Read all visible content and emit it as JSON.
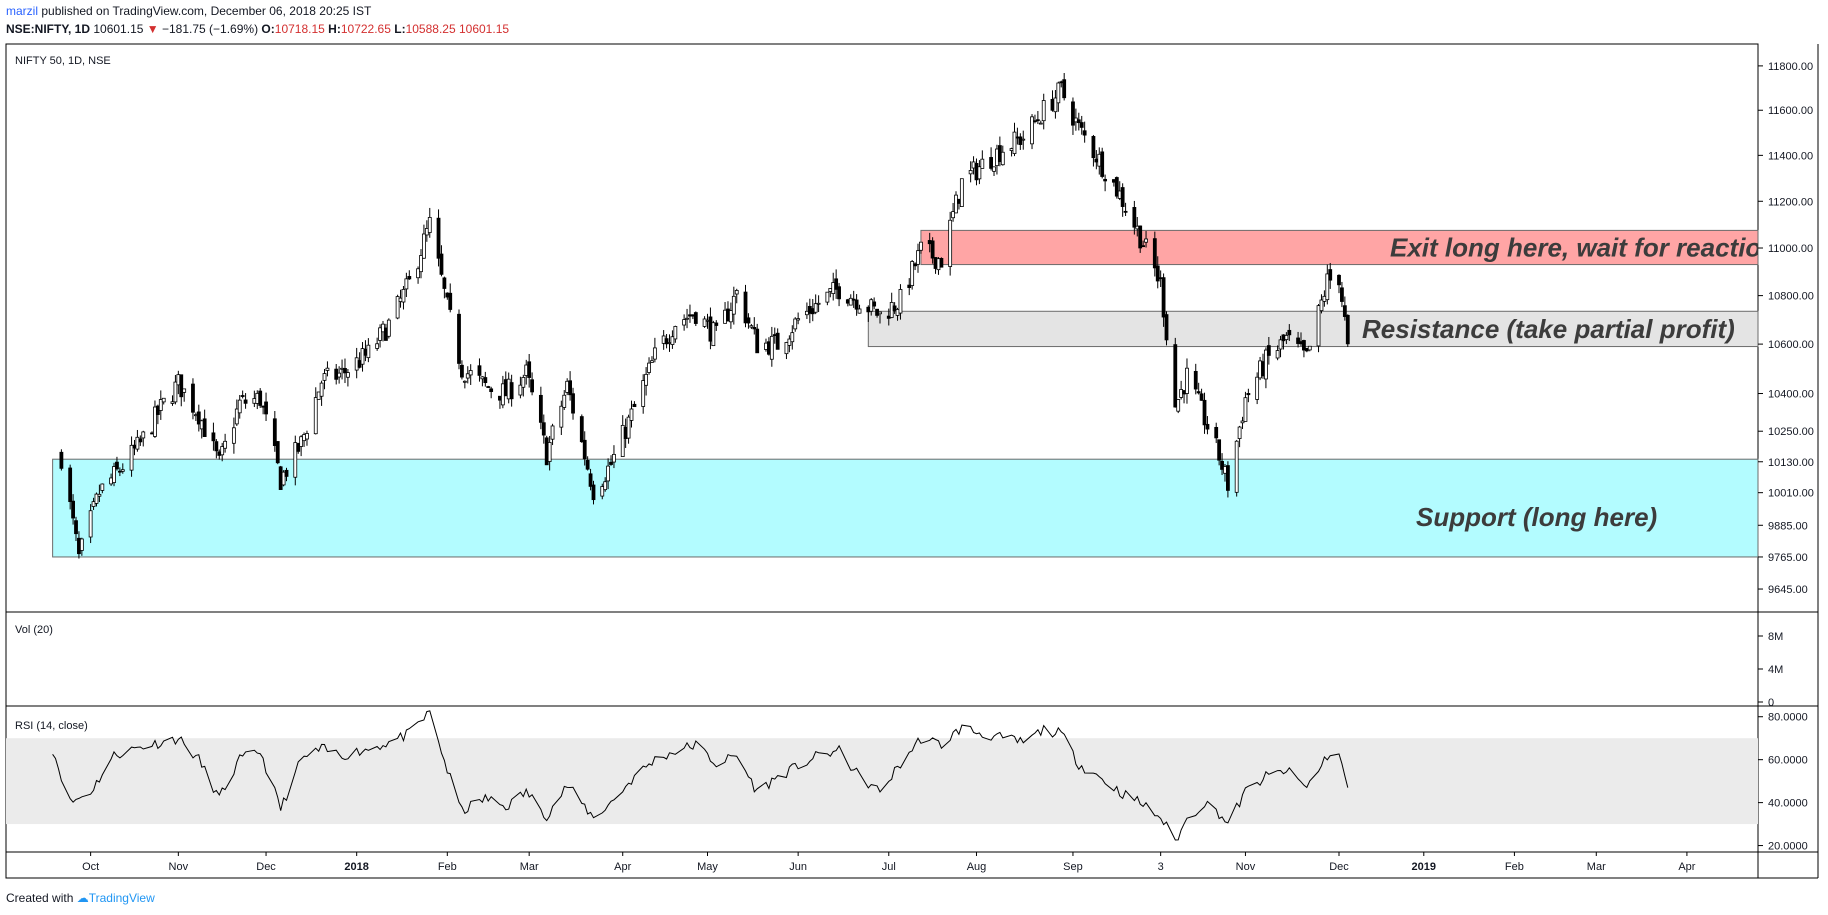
{
  "header": {
    "username": "marzil",
    "published_text": "published on TradingView.com, December 06, 2018 20:25 IST"
  },
  "ticker": {
    "symbol": "NSE:NIFTY, 1D",
    "last": "10601.15",
    "change": "−181.75 (−1.69%)",
    "open_label": "O:",
    "open": "10718.15",
    "high_label": "H:",
    "high": "10722.65",
    "low_label": "L:",
    "low": "10588.25",
    "close": "10601.15"
  },
  "footer": {
    "created_with": "Created with",
    "brand": "TradingView"
  },
  "colors": {
    "support_zone": "#b3fcff",
    "resistance_zone": "#e4e4e4",
    "exit_zone": "#ffa5a5",
    "candle": "#000000",
    "rsi_band": "#ebebeb",
    "annotation_text": "#3c3c3c"
  },
  "chart_data": [
    {
      "type": "candlestick",
      "title": "NIFTY 50, 1D, NSE",
      "y_scale": "log",
      "ylim": [
        9560,
        11900
      ],
      "y_ticks": [
        "11800.00",
        "11600.00",
        "11400.00",
        "11200.00",
        "11000.00",
        "10800.00",
        "10600.00",
        "10400.00",
        "10250.00",
        "10130.00",
        "10010.00",
        "9885.00",
        "9765.00",
        "9645.00"
      ],
      "x_ticks": [
        "Oct",
        "Nov",
        "Dec",
        "2018",
        "Feb",
        "Mar",
        "Apr",
        "May",
        "Jun",
        "Jul",
        "Aug",
        "Sep",
        "3",
        "Nov",
        "Dec",
        "2019",
        "Feb",
        "Mar",
        "Apr"
      ],
      "close_path": [
        [
          "2017-09-22",
          10150
        ],
        [
          "2017-09-28",
          9760
        ],
        [
          "2017-10-05",
          10010
        ],
        [
          "2017-10-12",
          10100
        ],
        [
          "2017-10-19",
          10200
        ],
        [
          "2017-10-26",
          10340
        ],
        [
          "2017-11-01",
          10440
        ],
        [
          "2017-11-08",
          10320
        ],
        [
          "2017-11-15",
          10120
        ],
        [
          "2017-11-22",
          10360
        ],
        [
          "2017-11-29",
          10380
        ],
        [
          "2017-12-06",
          10060
        ],
        [
          "2017-12-13",
          10200
        ],
        [
          "2017-12-20",
          10450
        ],
        [
          "2017-12-27",
          10480
        ],
        [
          "2018-01-05",
          10560
        ],
        [
          "2018-01-12",
          10680
        ],
        [
          "2018-01-19",
          10850
        ],
        [
          "2018-01-26",
          11100
        ],
        [
          "2018-02-01",
          10750
        ],
        [
          "2018-02-06",
          10500
        ],
        [
          "2018-02-14",
          10430
        ],
        [
          "2018-02-21",
          10400
        ],
        [
          "2018-02-28",
          10480
        ],
        [
          "2018-03-07",
          10160
        ],
        [
          "2018-03-14",
          10430
        ],
        [
          "2018-03-23",
          10020
        ],
        [
          "2018-03-29",
          10120
        ],
        [
          "2018-04-06",
          10340
        ],
        [
          "2018-04-13",
          10550
        ],
        [
          "2018-04-20",
          10690
        ],
        [
          "2018-04-27",
          10730
        ],
        [
          "2018-05-04",
          10630
        ],
        [
          "2018-05-11",
          10810
        ],
        [
          "2018-05-18",
          10600
        ],
        [
          "2018-05-25",
          10600
        ],
        [
          "2018-06-01",
          10700
        ],
        [
          "2018-06-08",
          10770
        ],
        [
          "2018-06-15",
          10830
        ],
        [
          "2018-06-22",
          10780
        ],
        [
          "2018-06-29",
          10720
        ],
        [
          "2018-07-06",
          10780
        ],
        [
          "2018-07-13",
          10990
        ],
        [
          "2018-07-20",
          10950
        ],
        [
          "2018-07-27",
          11280
        ],
        [
          "2018-08-03",
          11360
        ],
        [
          "2018-08-10",
          11430
        ],
        [
          "2018-08-17",
          11480
        ],
        [
          "2018-08-24",
          11600
        ],
        [
          "2018-08-30",
          11690
        ],
        [
          "2018-09-05",
          11520
        ],
        [
          "2018-09-12",
          11380
        ],
        [
          "2018-09-19",
          11230
        ],
        [
          "2018-09-26",
          11050
        ],
        [
          "2018-10-03",
          10850
        ],
        [
          "2018-10-08",
          10350
        ],
        [
          "2018-10-12",
          10470
        ],
        [
          "2018-10-18",
          10300
        ],
        [
          "2018-10-23",
          10150
        ],
        [
          "2018-10-26",
          10040
        ],
        [
          "2018-11-01",
          10380
        ],
        [
          "2018-11-08",
          10530
        ],
        [
          "2018-11-15",
          10620
        ],
        [
          "2018-11-22",
          10540
        ],
        [
          "2018-11-29",
          10860
        ],
        [
          "2018-12-03",
          10880
        ],
        [
          "2018-12-06",
          10600
        ]
      ],
      "zones": [
        {
          "label": "Exit long here, wait for reaction",
          "low": 10930,
          "high": 11075,
          "start": "2018-07-13",
          "color": "#ffa5a5"
        },
        {
          "label": "Resistance (take partial profit)",
          "low": 10590,
          "high": 10735,
          "start": "2018-06-25",
          "color": "#e4e4e4"
        },
        {
          "label": "Support (long here)",
          "low": 9765,
          "high": 10140,
          "start": "2017-09-19",
          "color": "#b3fcff"
        }
      ]
    },
    {
      "type": "bar",
      "title": "Vol (20)",
      "y_ticks": [
        "8M",
        "4M",
        "0"
      ],
      "values": []
    },
    {
      "type": "line",
      "title": "RSI (14, close)",
      "ylim": [
        17,
        85
      ],
      "band": [
        30,
        70
      ],
      "y_ticks": [
        "80.0000",
        "60.0000",
        "40.0000",
        "20.0000"
      ],
      "path": [
        [
          "2017-09-19",
          65
        ],
        [
          "2017-09-25",
          40
        ],
        [
          "2017-10-02",
          45
        ],
        [
          "2017-10-10",
          62
        ],
        [
          "2017-10-19",
          66
        ],
        [
          "2017-10-26",
          68
        ],
        [
          "2017-11-01",
          70
        ],
        [
          "2017-11-08",
          60
        ],
        [
          "2017-11-15",
          42
        ],
        [
          "2017-11-22",
          60
        ],
        [
          "2017-11-29",
          64
        ],
        [
          "2017-12-06",
          37
        ],
        [
          "2017-12-13",
          60
        ],
        [
          "2017-12-20",
          65
        ],
        [
          "2017-12-27",
          62
        ],
        [
          "2018-01-05",
          65
        ],
        [
          "2018-01-12",
          68
        ],
        [
          "2018-01-19",
          72
        ],
        [
          "2018-01-26",
          82
        ],
        [
          "2018-02-01",
          55
        ],
        [
          "2018-02-06",
          36
        ],
        [
          "2018-02-14",
          42
        ],
        [
          "2018-02-21",
          38
        ],
        [
          "2018-02-28",
          45
        ],
        [
          "2018-03-07",
          34
        ],
        [
          "2018-03-14",
          48
        ],
        [
          "2018-03-23",
          33
        ],
        [
          "2018-03-29",
          40
        ],
        [
          "2018-04-06",
          52
        ],
        [
          "2018-04-13",
          60
        ],
        [
          "2018-04-20",
          64
        ],
        [
          "2018-04-27",
          67
        ],
        [
          "2018-05-04",
          58
        ],
        [
          "2018-05-11",
          62
        ],
        [
          "2018-05-18",
          45
        ],
        [
          "2018-05-25",
          52
        ],
        [
          "2018-06-01",
          57
        ],
        [
          "2018-06-08",
          62
        ],
        [
          "2018-06-15",
          64
        ],
        [
          "2018-06-22",
          52
        ],
        [
          "2018-06-29",
          45
        ],
        [
          "2018-07-06",
          58
        ],
        [
          "2018-07-13",
          70
        ],
        [
          "2018-07-20",
          67
        ],
        [
          "2018-07-27",
          75
        ],
        [
          "2018-08-03",
          72
        ],
        [
          "2018-08-10",
          70
        ],
        [
          "2018-08-17",
          68
        ],
        [
          "2018-08-24",
          74
        ],
        [
          "2018-08-30",
          72
        ],
        [
          "2018-09-05",
          58
        ],
        [
          "2018-09-12",
          52
        ],
        [
          "2018-09-19",
          45
        ],
        [
          "2018-09-26",
          40
        ],
        [
          "2018-10-03",
          33
        ],
        [
          "2018-10-08",
          22
        ],
        [
          "2018-10-12",
          32
        ],
        [
          "2018-10-18",
          40
        ],
        [
          "2018-10-23",
          35
        ],
        [
          "2018-10-26",
          30
        ],
        [
          "2018-11-01",
          45
        ],
        [
          "2018-11-08",
          52
        ],
        [
          "2018-11-15",
          55
        ],
        [
          "2018-11-22",
          47
        ],
        [
          "2018-11-29",
          62
        ],
        [
          "2018-12-03",
          62
        ],
        [
          "2018-12-06",
          47
        ]
      ]
    }
  ]
}
